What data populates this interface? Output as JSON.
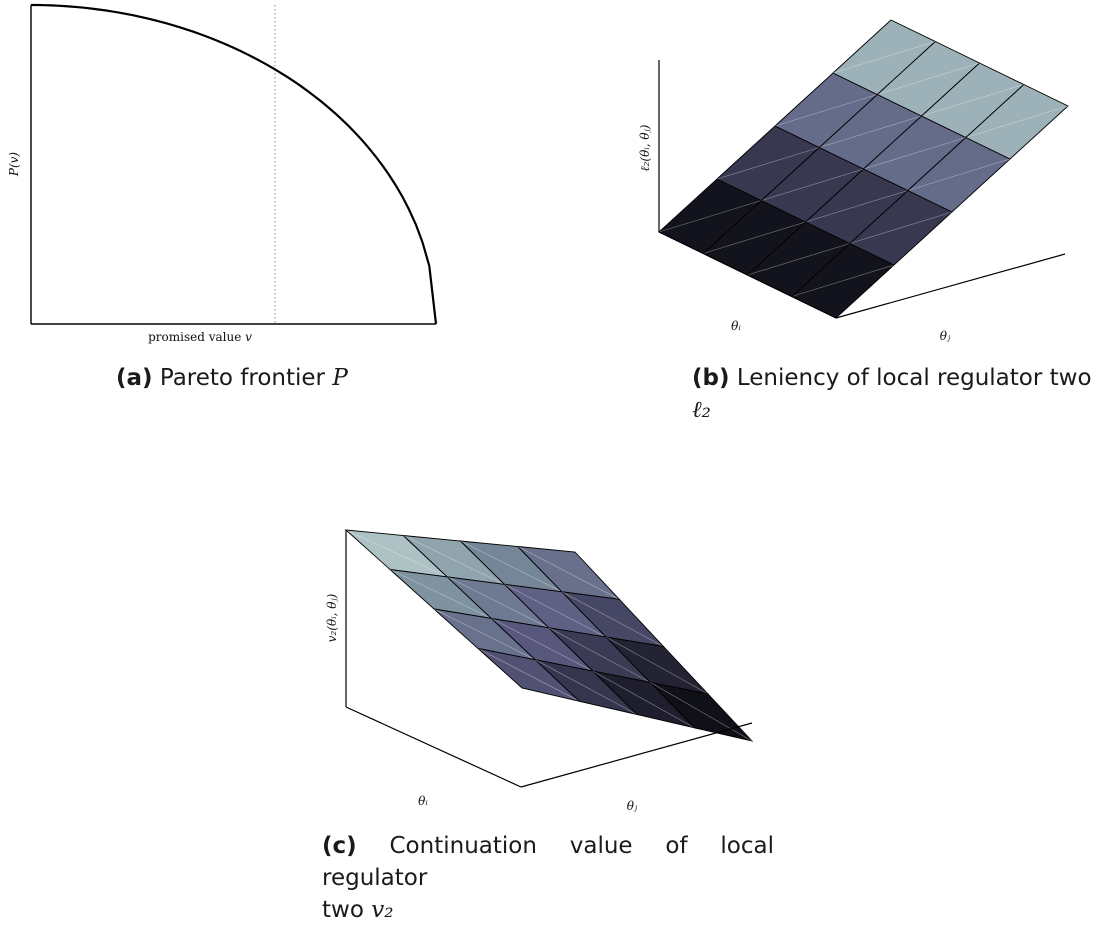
{
  "panel_a": {
    "caption_tag": "(a)",
    "caption_text": "Pareto frontier ",
    "caption_math": "P",
    "xlabel": "promised value ",
    "xlabel_math": "v",
    "ylabel": "P(v)"
  },
  "panel_b": {
    "caption_tag": "(b)",
    "caption_text": "Leniency of local regulator two ",
    "caption_math": "ℓ₂",
    "zlabel": "ℓ₂(θᵢ, θⱼ)",
    "axis_i": "θᵢ",
    "axis_j": "θⱼ"
  },
  "panel_c": {
    "caption_tag": "(c)",
    "caption_text_line1": "Continuation value of local regulator",
    "caption_text_line2": "two ",
    "caption_math": "v₂",
    "zlabel": "v₂(θᵢ, θⱼ)",
    "axis_i": "θᵢ",
    "axis_j": "θⱼ"
  },
  "colors": {
    "axis": "#000000",
    "curve": "#000000",
    "guide": "#888888",
    "surface_light": "#cfe3e0",
    "surface_dark": "#050505"
  },
  "chart_data": [
    {
      "type": "line",
      "title": "Pareto frontier P",
      "xlabel": "promised value v",
      "ylabel": "P(v)",
      "series": [
        {
          "x": [
            0.0,
            0.1,
            0.2,
            0.3,
            0.4,
            0.5,
            0.6,
            0.7,
            0.8,
            0.9,
            1.0
          ],
          "y": [
            1.0,
            0.99,
            0.96,
            0.91,
            0.84,
            0.75,
            0.64,
            0.51,
            0.36,
            0.19,
            0.0
          ]
        }
      ],
      "guide_x": 0.6,
      "grid": false
    },
    {
      "type": "heatmap",
      "title": "Leniency of local regulator two ℓ₂",
      "zlabel": "ℓ₂(θᵢ, θⱼ)",
      "xlabel": "θᵢ",
      "ylabel": "θⱼ",
      "grid_size": [
        5,
        5
      ],
      "z": [
        [
          0.0,
          0.0,
          0.0,
          0.0,
          0.0
        ],
        [
          0.25,
          0.25,
          0.25,
          0.25,
          0.25
        ],
        [
          0.5,
          0.5,
          0.5,
          0.5,
          0.5
        ],
        [
          0.75,
          0.75,
          0.75,
          0.75,
          0.75
        ],
        [
          1.0,
          1.0,
          1.0,
          1.0,
          1.0
        ]
      ]
    },
    {
      "type": "heatmap",
      "title": "Continuation value of local regulator two v₂",
      "zlabel": "v₂(θᵢ, θⱼ)",
      "xlabel": "θᵢ",
      "ylabel": "θⱼ",
      "grid_size": [
        5,
        5
      ],
      "z": [
        [
          1.0,
          0.95,
          0.88,
          0.8,
          0.7
        ],
        [
          0.9,
          0.82,
          0.72,
          0.6,
          0.48
        ],
        [
          0.78,
          0.68,
          0.55,
          0.42,
          0.28
        ],
        [
          0.64,
          0.52,
          0.38,
          0.22,
          0.1
        ],
        [
          0.48,
          0.35,
          0.2,
          0.08,
          0.0
        ]
      ]
    }
  ]
}
